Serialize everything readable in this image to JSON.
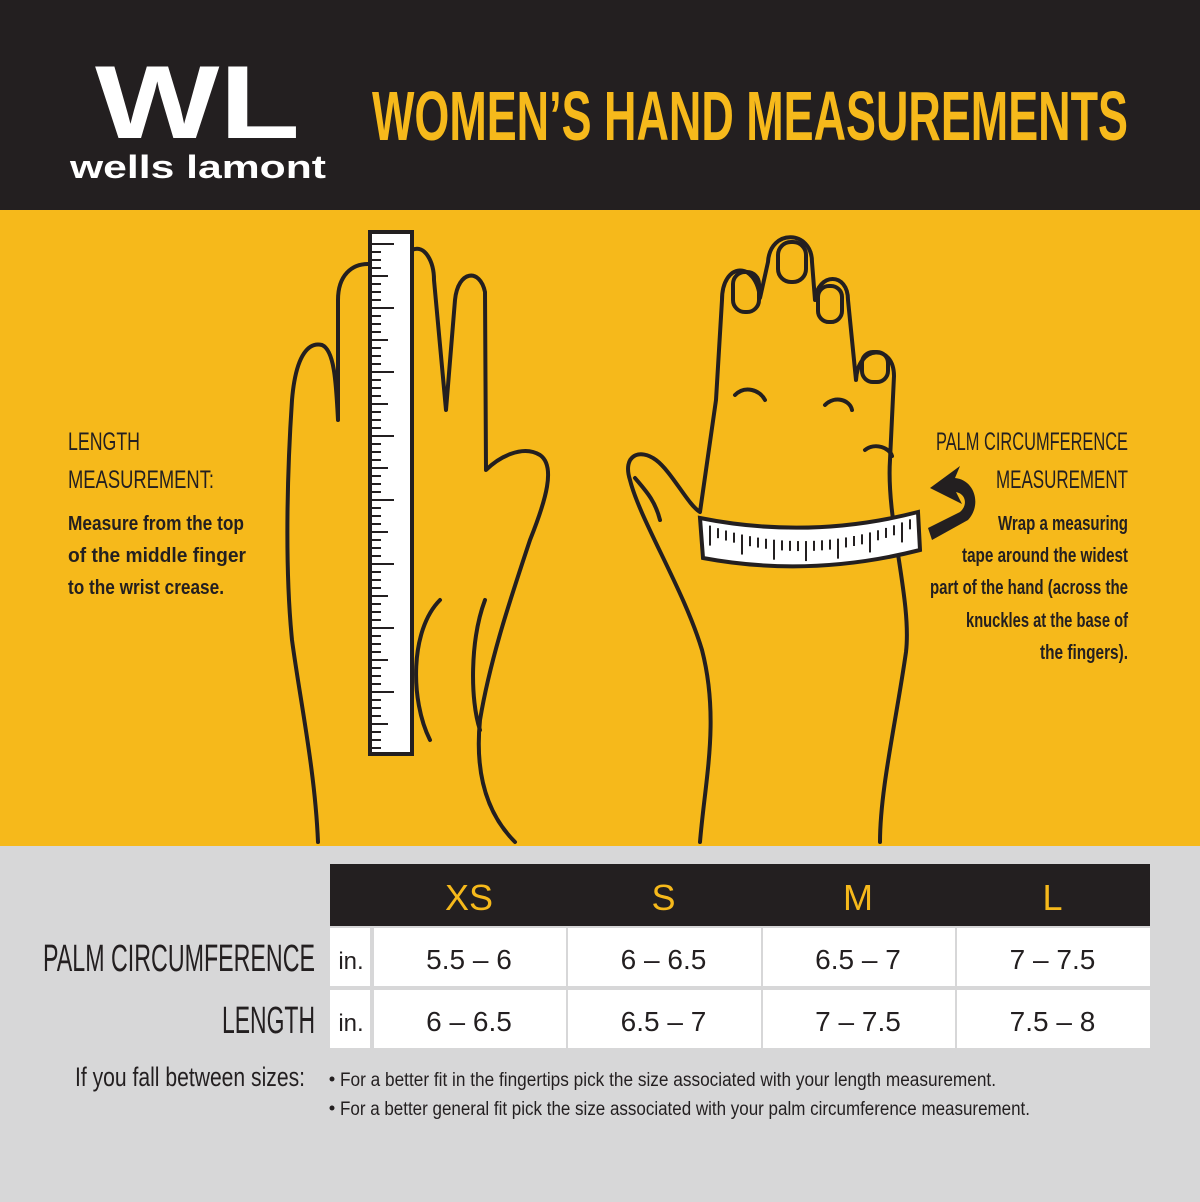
{
  "header": {
    "logo_mark": "WL",
    "wordmark": "wells lamont",
    "title": "WOMEN’S HAND MEASUREMENTS"
  },
  "length_panel": {
    "heading": [
      "LENGTH",
      "MEASUREMENT:"
    ],
    "text": [
      "Measure from the top",
      "of the middle finger",
      "to the wrist crease."
    ]
  },
  "palm_panel": {
    "heading": [
      "PALM CIRCUMFERENCE",
      "MEASUREMENT"
    ],
    "text": [
      "Wrap a measuring",
      "tape around the widest",
      "part of the hand (across the",
      "knuckles at the base of",
      "the fingers)."
    ]
  },
  "table": {
    "columns": [
      "XS",
      "S",
      "M",
      "L"
    ],
    "rows": [
      {
        "label": "PALM CIRCUMFERENCE",
        "unit": "in.",
        "cells": [
          "5.5 – 6",
          "6 – 6.5",
          "6.5 – 7",
          "7 – 7.5"
        ]
      },
      {
        "label": "LENGTH",
        "unit": "in.",
        "cells": [
          "6 – 6.5",
          "6.5 – 7",
          "7 – 7.5",
          "7.5 – 8"
        ]
      }
    ]
  },
  "note": {
    "label": "If you fall between sizes:",
    "bullets": [
      "For a better fit in the fingertips pick the size associated with your length measurement.",
      "For a better general fit pick the size associated with your palm circumference measurement."
    ]
  }
}
